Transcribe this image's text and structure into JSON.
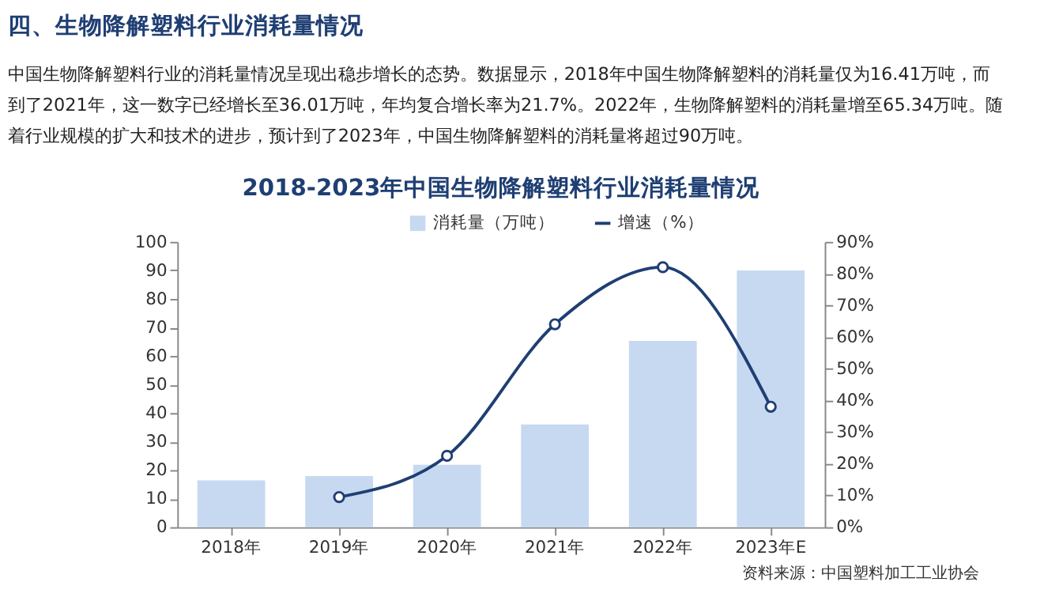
{
  "chart_data": {
    "type": "bar",
    "title": "四、生物降解塑料行业消耗量情况",
    "subtitle": "中国生物降解塑料行业的消耗量情况呈现出稳步增长的态势。数据显示，2018年中国生物降解塑料的消耗量仅为16.41万吨，而到了2021年，这一数字已经增长至36.01万吨，年均复合增长率为21.7%。2022年，生物降解塑料的消耗量增至65.34万吨。随着行业规模的扩大和技术的进步，预计到了2023年，中国生物降解塑料的消耗量将超过90万吨。",
    "annotations": [
      "2018-2023年中国生物降解塑料行业消耗量情况",
      "资料来源：中国塑料加工工业协会"
    ],
    "categories": [
      "2018年",
      "2019年",
      "2020年",
      "2021年",
      "2022年",
      "2023年E"
    ],
    "series": [
      {
        "name": "消耗量（万吨）",
        "color": "#c6d9f1",
        "values": [
          16.4,
          17.9,
          21.9,
          36.0,
          65.3,
          90
        ]
      },
      {
        "name": "增速（%）",
        "type": "line",
        "axis": "y2",
        "color": "#1f3f73",
        "marker": "circle",
        "values": [
          null,
          9.5,
          22.5,
          64,
          82,
          38
        ]
      }
    ],
    "ylim": [
      0,
      100
    ],
    "yticks": [
      0,
      10,
      20,
      30,
      40,
      50,
      60,
      70,
      80,
      90,
      100
    ],
    "y2lim": [
      0,
      90
    ],
    "y2ticks": [
      {
        "value": 0,
        "label": "0%"
      },
      {
        "value": 10,
        "label": "10%"
      },
      {
        "value": 20,
        "label": "20%"
      },
      {
        "value": 30,
        "label": "30%"
      },
      {
        "value": 40,
        "label": "40%"
      },
      {
        "value": 50,
        "label": "50%"
      },
      {
        "value": 60,
        "label": "60%"
      },
      {
        "value": 70,
        "label": "70%"
      },
      {
        "value": 80,
        "label": "80%"
      },
      {
        "value": 90,
        "label": "90%"
      }
    ],
    "legend": "top",
    "grid": false
  }
}
